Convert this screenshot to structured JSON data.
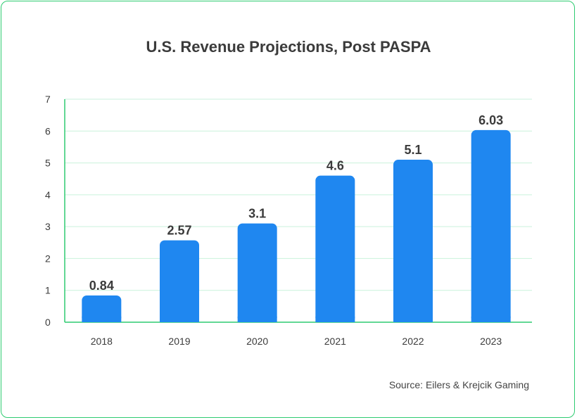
{
  "chart_data": {
    "type": "bar",
    "title": "U.S. Revenue Projections, Post PASPA",
    "source": "Source: Eilers & Krejcik Gaming",
    "categories": [
      "2018",
      "2019",
      "2020",
      "2021",
      "2022",
      "2023"
    ],
    "values": [
      0.84,
      2.57,
      3.1,
      4.6,
      5.1,
      6.03
    ],
    "data_labels": [
      "0.84",
      "2.57",
      "3.1",
      "4.6",
      "5.1",
      "6.03"
    ],
    "ylim": [
      0,
      7
    ],
    "yticks": [
      "0",
      "1",
      "2",
      "3",
      "4",
      "5",
      "6",
      "7"
    ],
    "xlabel": "",
    "ylabel": "",
    "grid": true,
    "colors": {
      "bar": "#1f87f0",
      "grid": "#c9f2dc",
      "axis": "#2ecc71",
      "border": "#2ecc71"
    }
  }
}
